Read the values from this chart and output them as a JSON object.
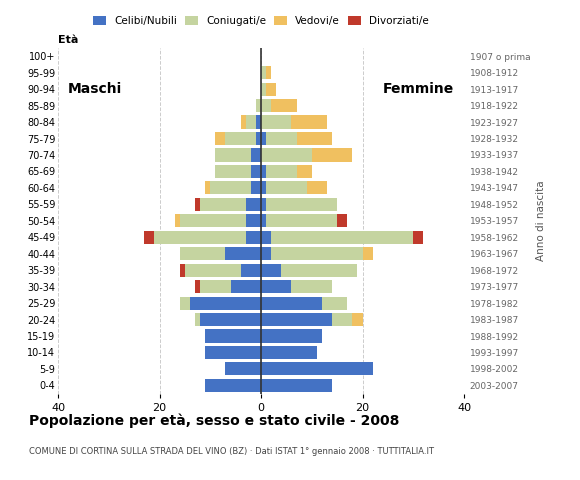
{
  "age_groups": [
    "0-4",
    "5-9",
    "10-14",
    "15-19",
    "20-24",
    "25-29",
    "30-34",
    "35-39",
    "40-44",
    "45-49",
    "50-54",
    "55-59",
    "60-64",
    "65-69",
    "70-74",
    "75-79",
    "80-84",
    "85-89",
    "90-94",
    "95-99",
    "100+"
  ],
  "birth_years": [
    "2003-2007",
    "1998-2002",
    "1993-1997",
    "1988-1992",
    "1983-1987",
    "1978-1982",
    "1973-1977",
    "1968-1972",
    "1963-1967",
    "1958-1962",
    "1953-1957",
    "1948-1952",
    "1943-1947",
    "1938-1942",
    "1933-1937",
    "1928-1932",
    "1923-1927",
    "1918-1922",
    "1913-1917",
    "1908-1912",
    "1907 o prima"
  ],
  "colors": {
    "celibi": "#4472c4",
    "coniugati": "#c5d4a0",
    "vedovi": "#f0c060",
    "divorziati": "#c0392b"
  },
  "maschi": {
    "celibi": [
      11,
      7,
      11,
      11,
      12,
      14,
      6,
      4,
      7,
      3,
      3,
      3,
      2,
      2,
      2,
      1,
      1,
      0,
      0,
      0,
      0
    ],
    "coniugati": [
      0,
      0,
      0,
      0,
      1,
      2,
      6,
      11,
      9,
      18,
      13,
      9,
      8,
      7,
      7,
      6,
      2,
      1,
      0,
      0,
      0
    ],
    "vedovi": [
      0,
      0,
      0,
      0,
      0,
      0,
      0,
      0,
      0,
      0,
      1,
      0,
      1,
      0,
      0,
      2,
      1,
      0,
      0,
      0,
      0
    ],
    "divorziati": [
      0,
      0,
      0,
      0,
      0,
      0,
      1,
      1,
      0,
      2,
      0,
      1,
      0,
      0,
      0,
      0,
      0,
      0,
      0,
      0,
      0
    ]
  },
  "femmine": {
    "celibi": [
      14,
      22,
      11,
      12,
      14,
      12,
      6,
      4,
      2,
      2,
      1,
      1,
      1,
      1,
      0,
      1,
      0,
      0,
      0,
      0,
      0
    ],
    "coniugati": [
      0,
      0,
      0,
      0,
      4,
      5,
      8,
      15,
      18,
      28,
      14,
      14,
      8,
      6,
      10,
      6,
      6,
      2,
      1,
      1,
      0
    ],
    "vedovi": [
      0,
      0,
      0,
      0,
      2,
      0,
      0,
      0,
      2,
      0,
      0,
      0,
      4,
      3,
      8,
      7,
      7,
      5,
      2,
      1,
      0
    ],
    "divorziati": [
      0,
      0,
      0,
      0,
      0,
      0,
      0,
      0,
      0,
      2,
      2,
      0,
      0,
      0,
      0,
      0,
      0,
      0,
      0,
      0,
      0
    ]
  },
  "xlim": 40,
  "title": "Popolazione per età, sesso e stato civile - 2008",
  "subtitle": "COMUNE DI CORTINA SULLA STRADA DEL VINO (BZ) · Dati ISTAT 1° gennaio 2008 · TUTTITALIA.IT",
  "eta_label": "Età",
  "anno_label": "Anno di nascita",
  "label_maschi": "Maschi",
  "label_femmine": "Femmine",
  "legend_labels": [
    "Celibi/Nubili",
    "Coniugati/e",
    "Vedovi/e",
    "Divorziati/e"
  ],
  "bg_color": "#ffffff",
  "grid_color": "#cccccc"
}
